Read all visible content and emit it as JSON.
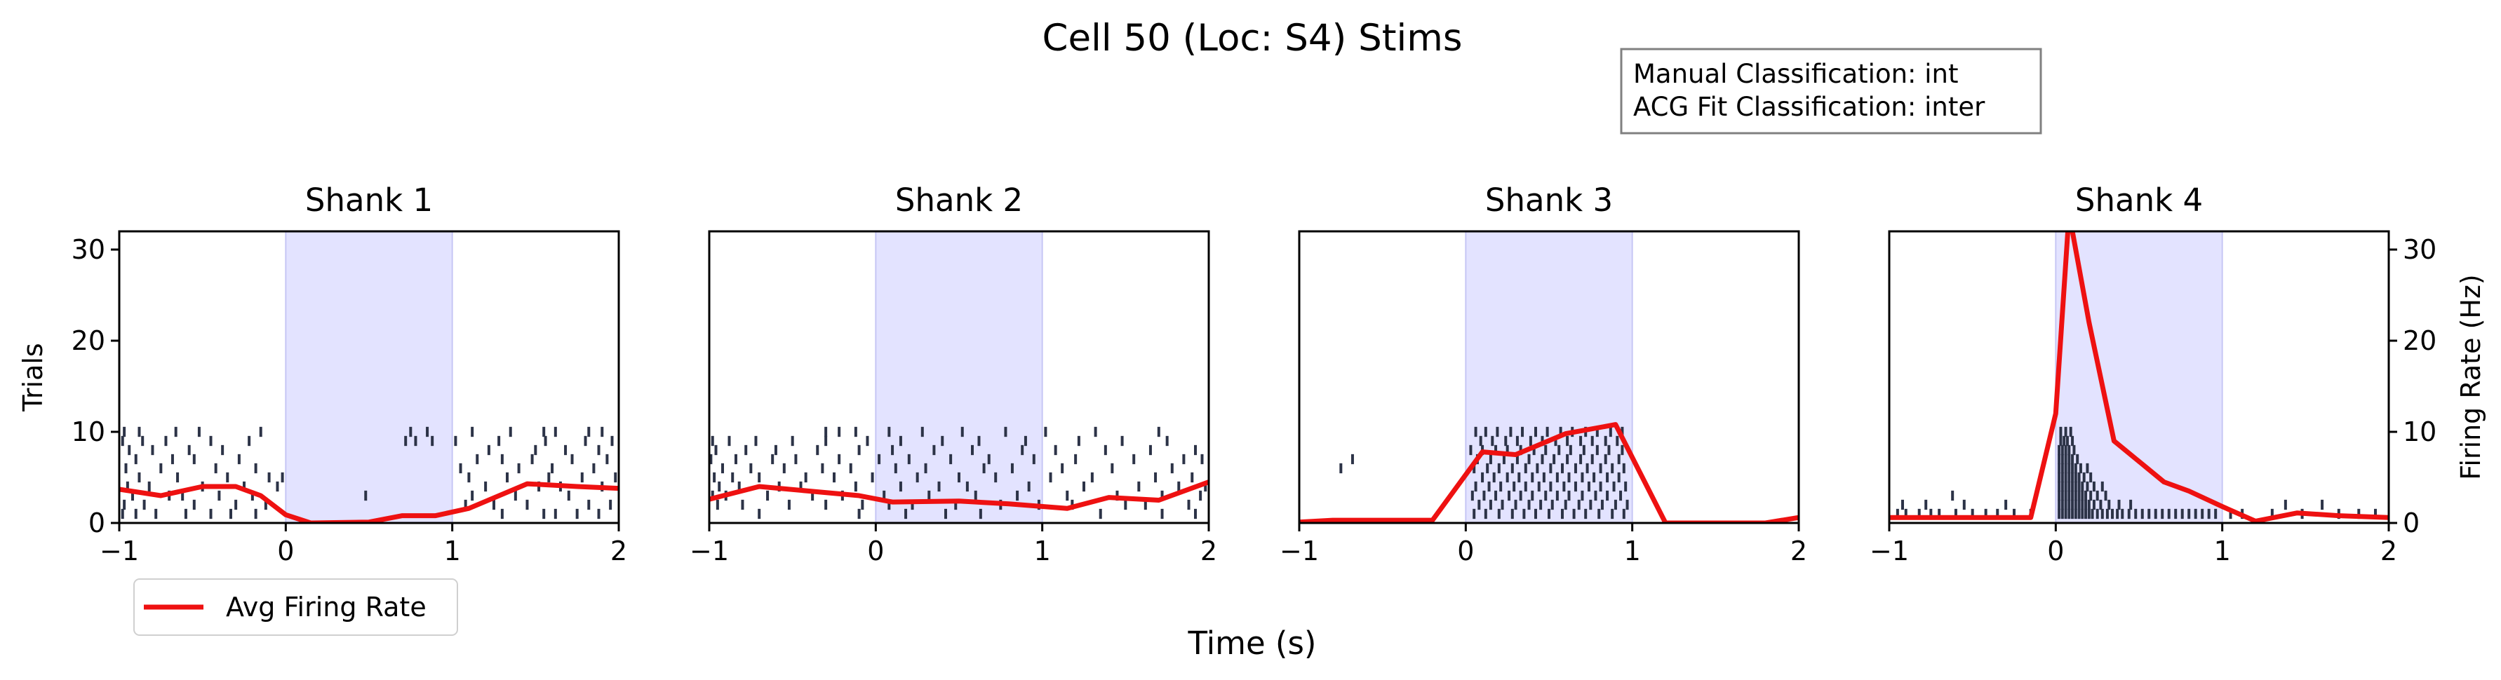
{
  "figure": {
    "title": "Cell 50 (Loc: S4) Stims",
    "xlabel": "Time (s)",
    "classification_box": {
      "line1": "Manual Classification: int",
      "line2": "ACG Fit Classification: inter"
    },
    "legend": {
      "label": "Avg Firing Rate",
      "placement": "lower-left"
    },
    "colors": {
      "rate_line": "#ee1111",
      "spikes": "#2c3347",
      "stim_shade": "#e3e3ff",
      "stim_edge": "#c6c6f4"
    }
  },
  "chart_data": [
    {
      "type": "raster_with_rate",
      "title": "Shank 1",
      "ylabel": "Trials",
      "xlim": [
        -1,
        2
      ],
      "ylim": [
        0,
        32
      ],
      "xticks": [
        "−1",
        "0",
        "1",
        "2"
      ],
      "yticks": [
        "0",
        "10",
        "20",
        "30"
      ],
      "stim_window": [
        0,
        1
      ],
      "rate": {
        "x": [
          -1,
          -0.75,
          -0.5,
          -0.3,
          -0.15,
          0,
          0.15,
          0.5,
          0.7,
          0.9,
          1.1,
          1.45,
          1.75,
          2
        ],
        "y": [
          3.7,
          3.0,
          4.0,
          4.0,
          3.0,
          0.9,
          0.0,
          0.1,
          0.8,
          0.8,
          1.6,
          4.3,
          4.0,
          3.8
        ]
      },
      "spikes": [
        {
          "trial": 1,
          "times": [
            -0.98,
            -0.9,
            -0.78,
            -0.6,
            -0.45,
            -0.33,
            -0.18,
            1.3,
            1.55,
            1.62,
            1.75,
            1.88
          ]
        },
        {
          "trial": 2,
          "times": [
            -0.97,
            -0.85,
            -0.55,
            -0.3,
            -0.12,
            1.08,
            1.25,
            1.45,
            1.82,
            1.95
          ]
        },
        {
          "trial": 3,
          "times": [
            -0.92,
            -0.7,
            -0.62,
            -0.4,
            -0.2,
            0.48,
            1.12,
            1.38,
            1.7
          ]
        },
        {
          "trial": 4,
          "times": [
            -0.95,
            -0.82,
            -0.5,
            -0.25,
            -0.05,
            1.2,
            1.52,
            1.65,
            1.9
          ]
        },
        {
          "trial": 5,
          "times": [
            -0.88,
            -0.65,
            -0.35,
            -0.1,
            -0.02,
            1.1,
            1.33,
            1.58,
            1.78,
            1.98
          ]
        },
        {
          "trial": 6,
          "times": [
            -0.96,
            -0.75,
            -0.42,
            -0.18,
            1.05,
            1.4,
            1.6,
            1.85
          ]
        },
        {
          "trial": 7,
          "times": [
            -0.9,
            -0.68,
            -0.55,
            -0.28,
            1.15,
            1.3,
            1.48,
            1.72,
            1.93
          ]
        },
        {
          "trial": 8,
          "times": [
            -0.94,
            -0.8,
            -0.58,
            -0.38,
            1.22,
            1.5,
            1.68,
            1.88
          ]
        },
        {
          "trial": 9,
          "times": [
            -0.98,
            -0.86,
            -0.72,
            -0.45,
            -0.22,
            0.72,
            0.78,
            0.88,
            1.02,
            1.28,
            1.56,
            1.8,
            1.96
          ]
        },
        {
          "trial": 10,
          "times": [
            -0.97,
            -0.88,
            -0.66,
            -0.52,
            -0.15,
            0.75,
            0.85,
            1.12,
            1.35,
            1.55,
            1.62,
            1.82,
            1.9
          ]
        }
      ]
    },
    {
      "type": "raster_with_rate",
      "title": "Shank 2",
      "xlim": [
        -1,
        2
      ],
      "ylim": [
        0,
        32
      ],
      "xticks": [
        "−1",
        "0",
        "1",
        "2"
      ],
      "stim_window": [
        0,
        1
      ],
      "rate": {
        "x": [
          -1,
          -0.7,
          -0.4,
          -0.1,
          0.1,
          0.5,
          0.8,
          1.15,
          1.4,
          1.7,
          2
        ],
        "y": [
          2.6,
          4.0,
          3.5,
          3.0,
          2.3,
          2.4,
          2.1,
          1.6,
          2.8,
          2.5,
          4.5
        ]
      },
      "spikes": [
        {
          "trial": 1,
          "times": [
            -0.7,
            -0.1,
            0.18,
            0.42,
            0.63,
            1.35,
            1.72,
            1.92
          ]
        },
        {
          "trial": 2,
          "times": [
            -0.95,
            -0.8,
            -0.52,
            -0.3,
            -0.08,
            0.08,
            0.22,
            0.48,
            0.75,
            0.98,
            1.18,
            1.5,
            1.62,
            1.88
          ]
        },
        {
          "trial": 3,
          "times": [
            -0.98,
            -0.9,
            -0.65,
            -0.38,
            -0.2,
            0.05,
            0.32,
            0.6,
            0.85,
            1.15,
            1.45,
            1.72,
            1.95
          ]
        },
        {
          "trial": 4,
          "times": [
            -0.94,
            -0.82,
            -0.58,
            -0.45,
            -0.12,
            0.15,
            0.38,
            0.55,
            0.92,
            1.25,
            1.58,
            1.82,
            1.98
          ]
        },
        {
          "trial": 5,
          "times": [
            -0.97,
            -0.86,
            -0.7,
            -0.42,
            -0.25,
            -0.02,
            0.25,
            0.5,
            0.72,
            1.05,
            1.3,
            1.68,
            1.9
          ]
        },
        {
          "trial": 6,
          "times": [
            -0.92,
            -0.75,
            -0.55,
            -0.32,
            -0.15,
            0.12,
            0.3,
            0.65,
            0.82,
            1.12,
            1.42,
            1.78
          ]
        },
        {
          "trial": 7,
          "times": [
            -0.99,
            -0.84,
            -0.62,
            -0.48,
            -0.22,
            0.02,
            0.2,
            0.45,
            0.68,
            0.95,
            1.2,
            1.55,
            1.85,
            1.96
          ]
        },
        {
          "trial": 8,
          "times": [
            -0.96,
            -0.78,
            -0.6,
            -0.35,
            -0.1,
            0.1,
            0.35,
            0.58,
            0.88,
            1.08,
            1.38,
            1.65,
            1.92
          ]
        },
        {
          "trial": 9,
          "times": [
            -0.98,
            -0.88,
            -0.72,
            -0.5,
            -0.3,
            -0.05,
            0.15,
            0.4,
            0.62,
            0.9,
            1.22,
            1.48,
            1.75
          ]
        },
        {
          "trial": 10,
          "times": [
            -0.3,
            -0.22,
            -0.12,
            0.08,
            0.28,
            0.52,
            0.78,
            1.02,
            1.32,
            1.7
          ]
        }
      ]
    },
    {
      "type": "raster_with_rate",
      "title": "Shank 3",
      "xlim": [
        -1,
        2
      ],
      "ylim": [
        0,
        32
      ],
      "xticks": [
        "−1",
        "0",
        "1",
        "2"
      ],
      "stim_window": [
        0,
        1
      ],
      "rate": {
        "x": [
          -1,
          -0.8,
          -0.2,
          0.1,
          0.3,
          0.6,
          0.9,
          1.2,
          1.8,
          2
        ],
        "y": [
          0.1,
          0.3,
          0.3,
          7.8,
          7.5,
          9.8,
          10.8,
          0.0,
          0.0,
          0.6
        ]
      },
      "spikes": [
        {
          "trial": 1,
          "times": [
            0.05,
            0.12,
            0.2,
            0.28,
            0.35,
            0.42,
            0.5,
            0.58,
            0.65,
            0.72,
            0.8,
            0.88,
            0.95
          ]
        },
        {
          "trial": 2,
          "times": [
            0.08,
            0.15,
            0.22,
            0.3,
            0.38,
            0.45,
            0.52,
            0.6,
            0.68,
            0.75,
            0.82,
            0.9,
            0.97
          ]
        },
        {
          "trial": 3,
          "times": [
            0.04,
            0.11,
            0.18,
            0.26,
            0.33,
            0.4,
            0.48,
            0.55,
            0.62,
            0.7,
            0.78,
            0.85,
            0.93
          ]
        },
        {
          "trial": 4,
          "times": [
            0.06,
            0.14,
            0.21,
            0.29,
            0.36,
            0.44,
            0.51,
            0.59,
            0.66,
            0.74,
            0.81,
            0.89,
            0.96
          ]
        },
        {
          "trial": 5,
          "times": [
            0.1,
            0.17,
            0.25,
            0.32,
            0.4,
            0.47,
            0.55,
            0.62,
            0.7,
            0.77,
            0.85,
            0.92
          ]
        },
        {
          "trial": 6,
          "times": [
            -0.75,
            0.05,
            0.13,
            0.2,
            0.28,
            0.36,
            0.43,
            0.51,
            0.58,
            0.66,
            0.73,
            0.81,
            0.88,
            0.95
          ]
        },
        {
          "trial": 7,
          "times": [
            -0.68,
            0.07,
            0.15,
            0.23,
            0.31,
            0.38,
            0.46,
            0.53,
            0.61,
            0.69,
            0.76,
            0.84,
            0.92
          ]
        },
        {
          "trial": 8,
          "times": [
            0.03,
            0.1,
            0.18,
            0.25,
            0.33,
            0.41,
            0.48,
            0.56,
            0.63,
            0.71,
            0.79,
            0.86,
            0.94
          ]
        },
        {
          "trial": 9,
          "times": [
            0.09,
            0.16,
            0.24,
            0.31,
            0.39,
            0.46,
            0.54,
            0.61,
            0.69,
            0.76,
            0.84,
            0.91
          ]
        },
        {
          "trial": 10,
          "times": [
            0.06,
            0.12,
            0.19,
            0.27,
            0.34,
            0.42,
            0.49,
            0.57,
            0.64,
            0.72,
            0.79,
            0.87,
            0.94
          ]
        }
      ]
    },
    {
      "type": "raster_with_rate",
      "title": "Shank 4",
      "ylabel_right": "Firing Rate (Hz)",
      "xlim": [
        -1,
        2
      ],
      "ylim": [
        0,
        32
      ],
      "xticks": [
        "−1",
        "0",
        "1",
        "2"
      ],
      "yticks_right": [
        "0",
        "10",
        "20",
        "30"
      ],
      "stim_window": [
        0,
        1
      ],
      "rate": {
        "x": [
          -1,
          -0.5,
          -0.15,
          0.0,
          0.08,
          0.2,
          0.35,
          0.55,
          0.65,
          0.8,
          1.0,
          1.2,
          1.45,
          1.7,
          2
        ],
        "y": [
          0.6,
          0.6,
          0.6,
          12.0,
          34.0,
          22.0,
          9.0,
          6.0,
          4.5,
          3.5,
          1.8,
          0.2,
          1.1,
          0.8,
          0.6
        ]
      },
      "spikes": [
        {
          "trial": 1,
          "times": [
            -0.95,
            -0.9,
            -0.82,
            -0.75,
            -0.7,
            -0.6,
            -0.5,
            -0.42,
            -0.35,
            -0.25,
            -0.15,
            0.02,
            0.04,
            0.06,
            0.08,
            0.1,
            0.12,
            0.14,
            0.16,
            0.18,
            0.2,
            0.22,
            0.25,
            0.28,
            0.31,
            0.34,
            0.37,
            0.4,
            0.44,
            0.48,
            0.52,
            0.56,
            0.6,
            0.64,
            0.68,
            0.72,
            0.76,
            0.8,
            0.84,
            0.88,
            0.92,
            0.96,
            1.05,
            1.12,
            1.3,
            1.48,
            1.7,
            1.82,
            1.92
          ]
        },
        {
          "trial": 2,
          "times": [
            -0.92,
            -0.78,
            -0.55,
            -0.3,
            0.02,
            0.04,
            0.06,
            0.08,
            0.1,
            0.12,
            0.14,
            0.16,
            0.18,
            0.2,
            0.23,
            0.27,
            0.32,
            0.38,
            0.45,
            1.38,
            1.6
          ]
        },
        {
          "trial": 3,
          "times": [
            -0.62,
            0.02,
            0.04,
            0.06,
            0.08,
            0.1,
            0.12,
            0.14,
            0.16,
            0.18,
            0.21,
            0.25,
            0.3
          ]
        },
        {
          "trial": 4,
          "times": [
            0.02,
            0.04,
            0.06,
            0.08,
            0.1,
            0.12,
            0.14,
            0.16,
            0.19,
            0.23,
            0.28
          ]
        },
        {
          "trial": 5,
          "times": [
            0.02,
            0.04,
            0.06,
            0.08,
            0.1,
            0.12,
            0.14,
            0.17,
            0.21
          ]
        },
        {
          "trial": 6,
          "times": [
            0.02,
            0.04,
            0.06,
            0.08,
            0.1,
            0.12,
            0.15,
            0.19
          ]
        },
        {
          "trial": 7,
          "times": [
            0.02,
            0.04,
            0.06,
            0.08,
            0.1,
            0.13
          ]
        },
        {
          "trial": 8,
          "times": [
            0.02,
            0.04,
            0.06,
            0.08,
            0.11
          ]
        },
        {
          "trial": 9,
          "times": [
            0.03,
            0.05,
            0.07,
            0.1
          ]
        },
        {
          "trial": 10,
          "times": [
            0.03,
            0.06,
            0.09
          ]
        }
      ]
    }
  ]
}
